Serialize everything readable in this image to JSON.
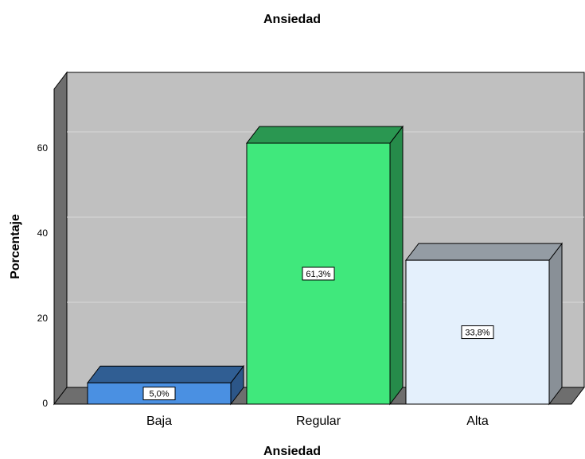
{
  "chart_data": {
    "type": "bar",
    "title": "Ansiedad",
    "x_label": "Ansiedad",
    "y_label": "Porcentaje",
    "categories": [
      "Baja",
      "Regular",
      "Alta"
    ],
    "values": [
      5.0,
      61.3,
      33.8
    ],
    "value_labels": [
      "5,0%",
      "61,3%",
      "33,8%"
    ],
    "colors": [
      "#4a90e2",
      "#40e87c",
      "#e4f0fc"
    ],
    "ylim": [
      0,
      74
    ],
    "yticks": [
      0,
      20,
      40,
      60
    ],
    "grid": true
  }
}
